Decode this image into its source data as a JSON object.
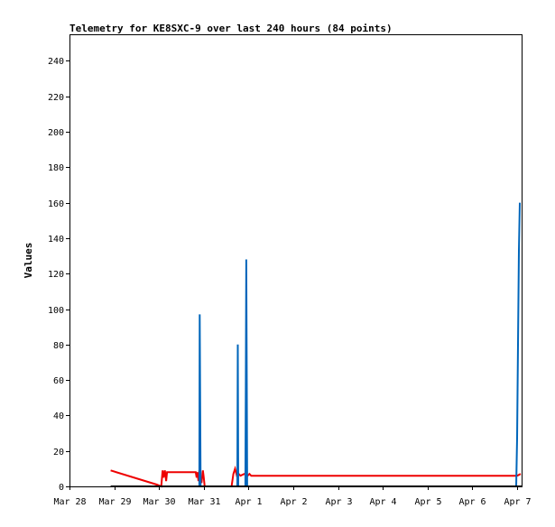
{
  "chart_data": {
    "type": "line",
    "title": "Telemetry for KE8SXC-9 over last 240 hours (84 points)",
    "ylabel": "Values",
    "xlabel": "",
    "ylim": [
      0,
      255
    ],
    "y_ticks": [
      0,
      20,
      40,
      60,
      80,
      100,
      120,
      140,
      160,
      180,
      200,
      220,
      240
    ],
    "x_ticks": [
      "Mar 28",
      "Mar 29",
      "Mar 30",
      "Mar 31",
      "Apr 1",
      "Apr 2",
      "Apr 3",
      "Apr 4",
      "Apr 5",
      "Apr 6",
      "Apr 7"
    ],
    "x_tick_days": [
      0,
      1,
      2,
      3,
      4,
      5,
      6,
      7,
      8,
      9,
      10
    ],
    "xlim_days": [
      0,
      10.1
    ],
    "grid": false,
    "colors": {
      "red_series": "#ee0000",
      "blue_series": "#0066bb",
      "black_series": "#000000"
    },
    "series": [
      {
        "color": "#ee0000",
        "points": [
          [
            0.92,
            9
          ],
          [
            1.95,
            1
          ],
          [
            2.05,
            0
          ],
          [
            2.08,
            9
          ],
          [
            2.1,
            5
          ],
          [
            2.13,
            9
          ],
          [
            2.16,
            3
          ],
          [
            2.18,
            8
          ],
          [
            2.82,
            8
          ],
          [
            2.84,
            5
          ],
          [
            2.86,
            8
          ],
          [
            2.88,
            3
          ],
          [
            2.9,
            9
          ],
          [
            2.92,
            5
          ],
          [
            2.95,
            2
          ],
          [
            2.98,
            9
          ],
          [
            3.0,
            5
          ],
          [
            3.02,
            0
          ],
          [
            3.62,
            0
          ],
          [
            3.66,
            7
          ],
          [
            3.7,
            10
          ],
          [
            3.74,
            6
          ],
          [
            3.78,
            7
          ],
          [
            3.82,
            6
          ],
          [
            3.9,
            7
          ],
          [
            3.98,
            6
          ],
          [
            4.02,
            7
          ],
          [
            4.06,
            6
          ],
          [
            10.0,
            6
          ],
          [
            10.08,
            7
          ]
        ]
      },
      {
        "color": "#0066bb",
        "points": [
          [
            2.9,
            0
          ],
          [
            2.91,
            97
          ],
          [
            2.92,
            48
          ],
          [
            2.93,
            0
          ],
          [
            3.75,
            0
          ],
          [
            3.76,
            80
          ],
          [
            3.77,
            0
          ],
          [
            3.93,
            0
          ],
          [
            3.94,
            57
          ],
          [
            3.95,
            128
          ],
          [
            3.96,
            64
          ],
          [
            3.97,
            0
          ],
          [
            9.98,
            0
          ],
          [
            10.0,
            27
          ],
          [
            10.02,
            80
          ],
          [
            10.04,
            133
          ],
          [
            10.06,
            160
          ]
        ]
      },
      {
        "color": "#000000",
        "points": [
          [
            0.92,
            0
          ],
          [
            10.1,
            0
          ]
        ]
      }
    ]
  }
}
